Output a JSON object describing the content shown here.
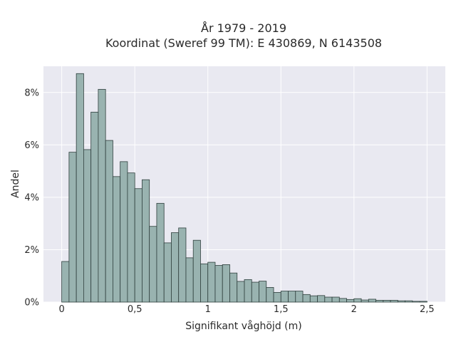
{
  "chart_data": {
    "type": "bar",
    "title": [
      "År 1979 - 2019",
      "Koordinat (Sweref 99 TM): E 430869, N 6143508"
    ],
    "xlabel": "Signifikant våghöjd (m)",
    "ylabel": "Andel",
    "xlim": [
      -0.125,
      2.625
    ],
    "ylim": [
      0,
      9.0
    ],
    "x_ticks": [
      0,
      0.5,
      1,
      1.5,
      2,
      2.5
    ],
    "x_tick_labels": [
      "0",
      "0,5",
      "1",
      "1,5",
      "2",
      "2,5"
    ],
    "y_ticks": [
      0,
      2,
      4,
      6,
      8
    ],
    "y_tick_labels": [
      "0%",
      "2%",
      "4%",
      "6%",
      "8%"
    ],
    "bin_width": 0.05,
    "bin_starts": [
      0.0,
      0.05,
      0.1,
      0.15,
      0.2,
      0.25,
      0.3,
      0.35,
      0.4,
      0.45,
      0.5,
      0.55,
      0.6,
      0.65,
      0.7,
      0.75,
      0.8,
      0.85,
      0.9,
      0.95,
      1.0,
      1.05,
      1.1,
      1.15,
      1.2,
      1.25,
      1.3,
      1.35,
      1.4,
      1.45,
      1.5,
      1.55,
      1.6,
      1.65,
      1.7,
      1.75,
      1.8,
      1.85,
      1.9,
      1.95,
      2.0,
      2.05,
      2.1,
      2.15,
      2.2,
      2.25,
      2.3,
      2.35,
      2.4,
      2.45
    ],
    "values": [
      1.55,
      5.72,
      8.72,
      5.82,
      7.25,
      8.12,
      6.17,
      4.79,
      5.36,
      4.93,
      4.33,
      4.67,
      2.89,
      3.77,
      2.26,
      2.65,
      2.83,
      1.69,
      2.36,
      1.46,
      1.52,
      1.4,
      1.43,
      1.11,
      0.79,
      0.86,
      0.76,
      0.8,
      0.56,
      0.37,
      0.42,
      0.42,
      0.42,
      0.29,
      0.24,
      0.25,
      0.19,
      0.19,
      0.14,
      0.1,
      0.13,
      0.08,
      0.11,
      0.07,
      0.07,
      0.07,
      0.05,
      0.05,
      0.03,
      0.03
    ],
    "bar_color": "#99b3b0",
    "bar_edge_color": "#2f3f3d",
    "plot_background": "#e9e9f1",
    "grid": true
  }
}
